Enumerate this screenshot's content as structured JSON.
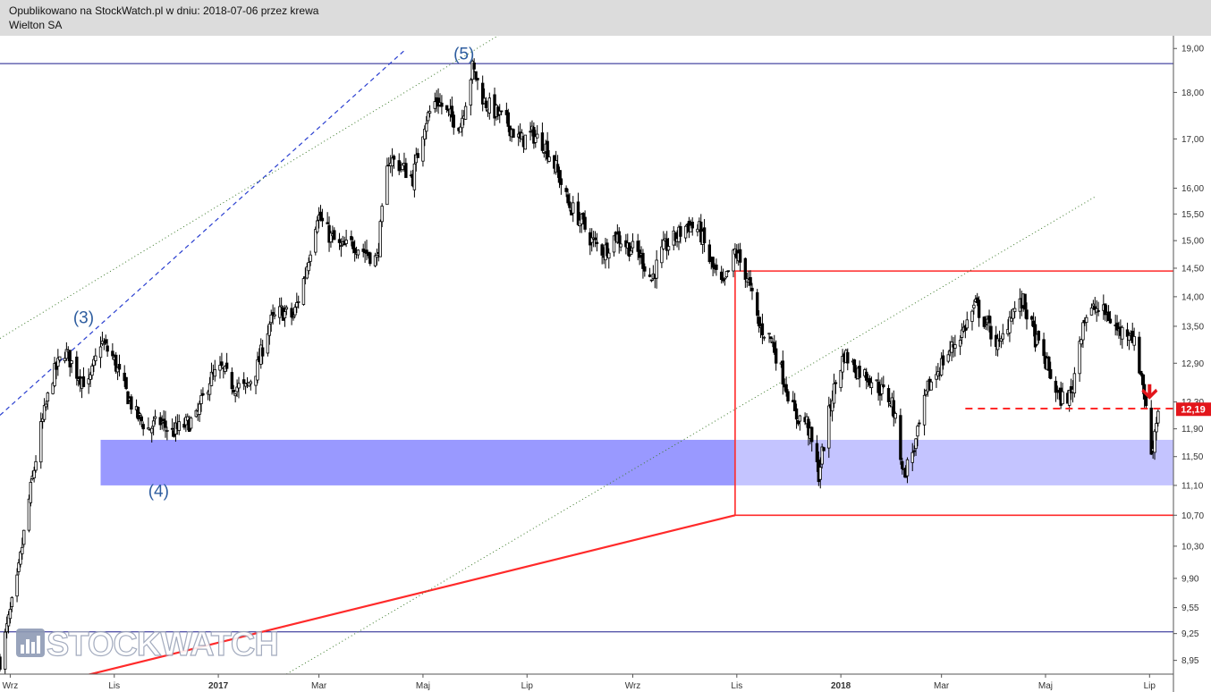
{
  "header": {
    "published": "Opublikowano na StockWatch.pl w dniu: 2018-07-06 przez krewa",
    "company": "Wielton SA"
  },
  "watermark": {
    "text": "STOCKWATCH",
    "icon": "bar-chart-icon"
  },
  "colors": {
    "candles": "#000000",
    "support_zone": "#9999ff",
    "support_zone_light": "#c4c4ff",
    "resistance_box": "#ff2a2a",
    "trendline": "#ff2a2a",
    "horizontal_line": "#1a1a8c",
    "channel_dashed": "#2a3fd0",
    "channel_dotted": "#3c7a2a",
    "wave_labels": "#2e5d9f",
    "price_badge": "#e3161b"
  },
  "chart_data": {
    "type": "candlestick",
    "symbol": "Wielton SA",
    "y_scale": "log",
    "ylim": [
      8.8,
      19.3
    ],
    "y_ticks": [
      "19,00",
      "18,00",
      "17,00",
      "16,00",
      "15,50",
      "15,00",
      "14,50",
      "14,00",
      "13,50",
      "12,90",
      "12,30",
      "11,90",
      "11,50",
      "11,10",
      "10,70",
      "10,30",
      "9,90",
      "9,55",
      "9,25",
      "8,95"
    ],
    "x_ticks": [
      {
        "label": "Wrz",
        "date": "2016-09-01"
      },
      {
        "label": "Lis",
        "date": "2016-11-01"
      },
      {
        "label": "2017",
        "date": "2017-01-01"
      },
      {
        "label": "Mar",
        "date": "2017-03-01"
      },
      {
        "label": "Maj",
        "date": "2017-05-01"
      },
      {
        "label": "Lip",
        "date": "2017-07-01"
      },
      {
        "label": "Wrz",
        "date": "2017-09-01"
      },
      {
        "label": "Lis",
        "date": "2017-11-01"
      },
      {
        "label": "2018",
        "date": "2018-01-01"
      },
      {
        "label": "Mar",
        "date": "2018-03-01"
      },
      {
        "label": "Maj",
        "date": "2018-05-01"
      },
      {
        "label": "Lip",
        "date": "2018-07-01"
      }
    ],
    "xlim": [
      "2016-08-26",
      "2018-07-15"
    ],
    "last_price": "12,19",
    "close_path": [
      [
        "2016-08-26",
        8.95
      ],
      [
        "2016-09-05",
        9.85
      ],
      [
        "2016-09-12",
        10.9
      ],
      [
        "2016-09-19",
        11.9
      ],
      [
        "2016-09-26",
        12.7
      ],
      [
        "2016-10-03",
        13.1
      ],
      [
        "2016-10-10",
        12.75
      ],
      [
        "2016-10-17",
        12.55
      ],
      [
        "2016-10-24",
        13.25
      ],
      [
        "2016-10-31",
        13.0
      ],
      [
        "2016-11-07",
        12.5
      ],
      [
        "2016-11-14",
        12.1
      ],
      [
        "2016-11-21",
        11.9
      ],
      [
        "2016-11-28",
        12.0
      ],
      [
        "2016-12-05",
        11.85
      ],
      [
        "2016-12-12",
        11.95
      ],
      [
        "2016-12-19",
        12.05
      ],
      [
        "2016-12-27",
        12.65
      ],
      [
        "2017-01-03",
        12.8
      ],
      [
        "2017-01-10",
        12.55
      ],
      [
        "2017-01-17",
        12.5
      ],
      [
        "2017-01-24",
        12.85
      ],
      [
        "2017-01-31",
        13.55
      ],
      [
        "2017-02-07",
        13.75
      ],
      [
        "2017-02-14",
        13.65
      ],
      [
        "2017-02-21",
        14.4
      ],
      [
        "2017-02-28",
        15.5
      ],
      [
        "2017-03-07",
        15.1
      ],
      [
        "2017-03-14",
        14.85
      ],
      [
        "2017-03-21",
        14.95
      ],
      [
        "2017-03-28",
        14.8
      ],
      [
        "2017-04-04",
        14.65
      ],
      [
        "2017-04-11",
        16.6
      ],
      [
        "2017-04-18",
        16.45
      ],
      [
        "2017-04-25",
        16.2
      ],
      [
        "2017-05-02",
        17.35
      ],
      [
        "2017-05-09",
        17.85
      ],
      [
        "2017-05-16",
        17.5
      ],
      [
        "2017-05-23",
        17.3
      ],
      [
        "2017-05-30",
        18.55
      ],
      [
        "2017-06-06",
        17.8
      ],
      [
        "2017-06-13",
        17.55
      ],
      [
        "2017-06-20",
        17.3
      ],
      [
        "2017-06-27",
        16.95
      ],
      [
        "2017-07-04",
        17.1
      ],
      [
        "2017-07-11",
        16.9
      ],
      [
        "2017-07-18",
        16.4
      ],
      [
        "2017-07-25",
        15.7
      ],
      [
        "2017-08-01",
        15.4
      ],
      [
        "2017-08-08",
        15.0
      ],
      [
        "2017-08-15",
        14.8
      ],
      [
        "2017-08-22",
        15.1
      ],
      [
        "2017-08-29",
        14.9
      ],
      [
        "2017-09-05",
        14.75
      ],
      [
        "2017-09-12",
        14.3
      ],
      [
        "2017-09-19",
        14.85
      ],
      [
        "2017-09-26",
        15.05
      ],
      [
        "2017-10-03",
        15.3
      ],
      [
        "2017-10-10",
        15.2
      ],
      [
        "2017-10-17",
        14.55
      ],
      [
        "2017-10-24",
        14.15
      ],
      [
        "2017-10-31",
        14.8
      ],
      [
        "2017-11-07",
        14.35
      ],
      [
        "2017-11-14",
        13.5
      ],
      [
        "2017-11-21",
        13.3
      ],
      [
        "2017-11-28",
        12.7
      ],
      [
        "2017-12-05",
        12.1
      ],
      [
        "2017-12-12",
        12.0
      ],
      [
        "2017-12-19",
        11.25
      ],
      [
        "2017-12-27",
        12.4
      ],
      [
        "2018-01-03",
        13.05
      ],
      [
        "2018-01-10",
        12.8
      ],
      [
        "2018-01-17",
        12.7
      ],
      [
        "2018-01-24",
        12.5
      ],
      [
        "2018-01-31",
        12.3
      ],
      [
        "2018-02-07",
        11.25
      ],
      [
        "2018-02-14",
        11.7
      ],
      [
        "2018-02-21",
        12.5
      ],
      [
        "2018-02-28",
        12.85
      ],
      [
        "2018-03-07",
        13.15
      ],
      [
        "2018-03-14",
        13.45
      ],
      [
        "2018-03-21",
        13.85
      ],
      [
        "2018-03-28",
        13.5
      ],
      [
        "2018-04-04",
        13.15
      ],
      [
        "2018-04-11",
        13.75
      ],
      [
        "2018-04-18",
        13.9
      ],
      [
        "2018-04-25",
        13.3
      ],
      [
        "2018-05-02",
        12.85
      ],
      [
        "2018-05-09",
        12.35
      ],
      [
        "2018-05-16",
        12.4
      ],
      [
        "2018-05-23",
        13.6
      ],
      [
        "2018-05-30",
        13.8
      ],
      [
        "2018-06-06",
        13.7
      ],
      [
        "2018-06-13",
        13.4
      ],
      [
        "2018-06-20",
        13.45
      ],
      [
        "2018-06-27",
        12.6
      ],
      [
        "2018-07-02",
        11.55
      ],
      [
        "2018-07-06",
        12.19
      ]
    ],
    "annotations": [
      {
        "kind": "wave_label",
        "text": "(3)",
        "date": "2016-10-14",
        "price": 13.55
      },
      {
        "kind": "wave_label",
        "text": "(4)",
        "date": "2016-11-27",
        "price": 10.95
      },
      {
        "kind": "wave_label",
        "text": "(5)",
        "date": "2017-05-25",
        "price": 18.75
      },
      {
        "kind": "hline",
        "price": 18.65,
        "color": "#1a1a8c"
      },
      {
        "kind": "hline",
        "price": 9.27,
        "color": "#1a1a8c"
      },
      {
        "kind": "zone",
        "from": "2016-10-24",
        "to": "2018-07-15",
        "low": 11.1,
        "high": 11.74
      },
      {
        "kind": "box",
        "from": "2017-10-31",
        "to": "2018-07-15",
        "low": 10.7,
        "high": 14.45
      },
      {
        "kind": "trendline",
        "from": [
          "2016-10-05",
          8.74
        ],
        "to": [
          "2017-10-31",
          10.7
        ],
        "style": "solid"
      },
      {
        "kind": "trendline",
        "from": [
          "2016-08-26",
          12.1
        ],
        "to": [
          "2017-04-20",
          18.95
        ],
        "style": "dashed"
      },
      {
        "kind": "trendline",
        "from": [
          "2016-08-26",
          13.3
        ],
        "to": [
          "2017-06-20",
          19.45
        ],
        "style": "dotted"
      },
      {
        "kind": "trendline",
        "from": [
          "2017-02-10",
          8.8
        ],
        "to": [
          "2018-05-31",
          15.85
        ],
        "style": "dotted"
      },
      {
        "kind": "hline_segment",
        "from": "2018-03-15",
        "to": "2018-07-15",
        "price": 12.2,
        "style": "dashed"
      },
      {
        "kind": "arrow_down",
        "date": "2018-07-01",
        "price": 12.42
      }
    ]
  }
}
